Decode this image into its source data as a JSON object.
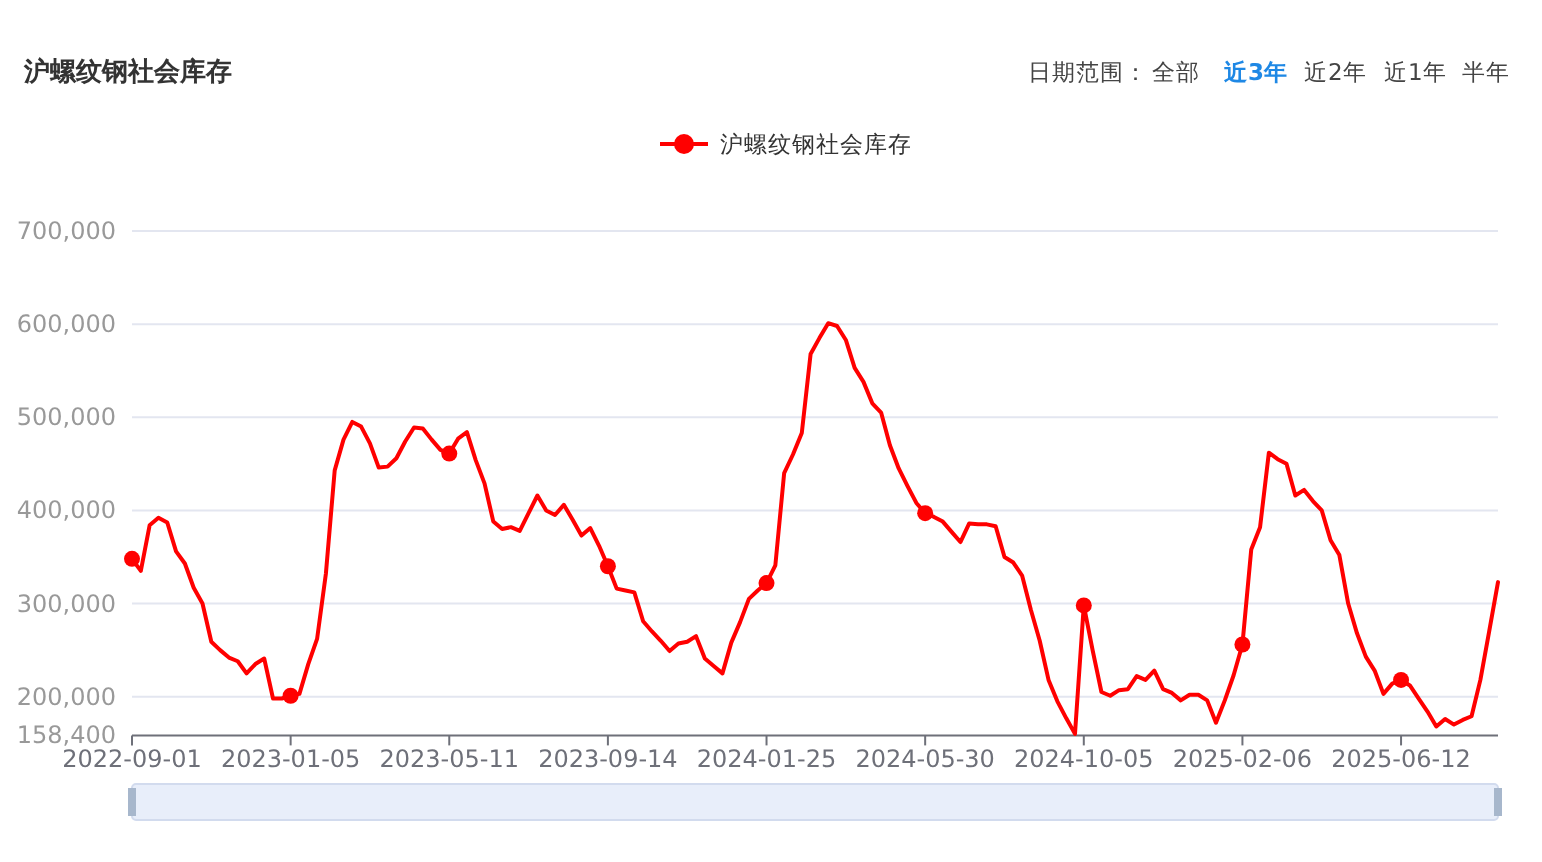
{
  "chart_data": {
    "type": "line",
    "title": "沪螺纹钢社会库存",
    "annotations": [
      "日期范围：",
      "全部",
      "近3年",
      "近2年",
      "近1年",
      "半年"
    ],
    "categories": [
      "2022-09-01",
      null,
      null,
      null,
      null,
      null,
      null,
      null,
      null,
      null,
      null,
      null,
      null,
      null,
      null,
      null,
      null,
      null,
      "2023-01-05",
      null,
      null,
      null,
      null,
      null,
      null,
      null,
      null,
      null,
      null,
      null,
      null,
      null,
      null,
      null,
      null,
      null,
      "2023-05-11",
      null,
      null,
      null,
      null,
      null,
      null,
      null,
      null,
      null,
      null,
      null,
      null,
      null,
      null,
      null,
      null,
      null,
      "2023-09-14",
      null,
      null,
      null,
      null,
      null,
      null,
      null,
      null,
      null,
      null,
      null,
      null,
      null,
      null,
      null,
      null,
      null,
      "2024-01-25",
      null,
      null,
      null,
      null,
      null,
      null,
      null,
      null,
      null,
      null,
      null,
      null,
      null,
      null,
      null,
      null,
      null,
      "2024-05-30",
      null,
      null,
      null,
      null,
      null,
      null,
      null,
      null,
      null,
      null,
      null,
      null,
      null,
      null,
      null,
      null,
      null,
      "2024-10-05",
      null,
      null,
      null,
      null,
      null,
      null,
      null,
      null,
      null,
      null,
      null,
      null,
      null,
      null,
      null,
      null,
      null,
      "2025-02-06",
      null,
      null,
      null,
      null,
      null,
      null,
      null,
      null,
      null,
      null,
      null,
      null,
      null,
      null,
      null,
      null,
      null,
      "2025-06-12",
      null,
      null,
      null,
      null,
      null,
      null,
      null,
      null,
      null,
      null,
      null
    ],
    "series": [
      {
        "name": "沪螺纹钢社会库存",
        "color": "#ff0000",
        "values": [
          348000,
          335000,
          384000,
          392000,
          387000,
          356000,
          343000,
          317000,
          300000,
          259000,
          250000,
          242000,
          238000,
          225000,
          235000,
          241000,
          198000,
          198000,
          201000,
          203000,
          235000,
          262000,
          332000,
          443000,
          476000,
          495000,
          490000,
          472000,
          446000,
          447000,
          456000,
          474000,
          489000,
          488000,
          476000,
          465000,
          461000,
          477000,
          484000,
          454000,
          429000,
          388000,
          380000,
          382000,
          378000,
          397000,
          416000,
          400000,
          395000,
          406000,
          390000,
          373000,
          381000,
          362000,
          340000,
          316000,
          314000,
          312000,
          281000,
          270000,
          260000,
          249000,
          257000,
          259000,
          265000,
          241000,
          233000,
          225000,
          258000,
          280000,
          305000,
          314000,
          322000,
          341000,
          440000,
          460000,
          483000,
          568000,
          585000,
          601000,
          598000,
          583000,
          553000,
          538000,
          515000,
          505000,
          470000,
          445000,
          426000,
          408000,
          397000,
          393000,
          388000,
          377000,
          366000,
          386000,
          385000,
          385000,
          383000,
          350000,
          344000,
          330000,
          293000,
          260000,
          218000,
          195000,
          177000,
          160000,
          298000,
          250000,
          205000,
          201000,
          207000,
          208000,
          222000,
          218000,
          228000,
          208000,
          204000,
          196000,
          202000,
          202000,
          196000,
          172000,
          196000,
          223000,
          256000,
          358000,
          382000,
          462000,
          455000,
          450000,
          416000,
          422000,
          410000,
          400000,
          368000,
          352000,
          300000,
          268000,
          243000,
          228000,
          203000,
          214000,
          218000,
          212000,
          198000,
          184000,
          168000,
          176000,
          170000,
          175000,
          179000,
          218000,
          270000,
          323000
        ]
      },
      {
        "type": "scatter",
        "marker": "circle",
        "color": "#ff0000",
        "values": [
          348000,
          null,
          null,
          null,
          null,
          null,
          null,
          null,
          null,
          null,
          null,
          null,
          null,
          null,
          null,
          null,
          null,
          null,
          201000,
          null,
          null,
          null,
          null,
          null,
          null,
          null,
          null,
          null,
          null,
          null,
          null,
          null,
          null,
          null,
          null,
          null,
          461000,
          null,
          null,
          null,
          null,
          null,
          null,
          null,
          null,
          null,
          null,
          null,
          null,
          null,
          null,
          null,
          null,
          null,
          340000,
          null,
          null,
          null,
          null,
          null,
          null,
          null,
          null,
          null,
          null,
          null,
          null,
          null,
          null,
          null,
          null,
          null,
          322000,
          null,
          null,
          null,
          null,
          null,
          null,
          null,
          null,
          null,
          null,
          null,
          null,
          null,
          null,
          null,
          null,
          null,
          397000,
          null,
          null,
          null,
          null,
          null,
          null,
          null,
          null,
          null,
          null,
          null,
          null,
          null,
          null,
          null,
          null,
          null,
          298000,
          null,
          null,
          null,
          null,
          null,
          null,
          null,
          null,
          null,
          null,
          null,
          null,
          null,
          null,
          null,
          null,
          null,
          256000,
          null,
          null,
          null,
          null,
          null,
          null,
          null,
          null,
          null,
          null,
          null,
          null,
          null,
          null,
          null,
          null,
          null,
          218000,
          null,
          null,
          null,
          null,
          null,
          null,
          null,
          null,
          null,
          null,
          null
        ]
      }
    ],
    "ylim": [
      158400,
      700000
    ],
    "yticks": [
      {
        "value": 158400,
        "label": "158,400"
      },
      {
        "value": 200000,
        "label": "200,000"
      },
      {
        "value": 300000,
        "label": "300,000"
      },
      {
        "value": 400000,
        "label": "400,000"
      },
      {
        "value": 500000,
        "label": "500,000"
      },
      {
        "value": 600000,
        "label": "600,000"
      },
      {
        "value": 700000,
        "label": "700,000"
      }
    ],
    "grid": "y",
    "legend": "top",
    "line_style": "solid"
  }
}
